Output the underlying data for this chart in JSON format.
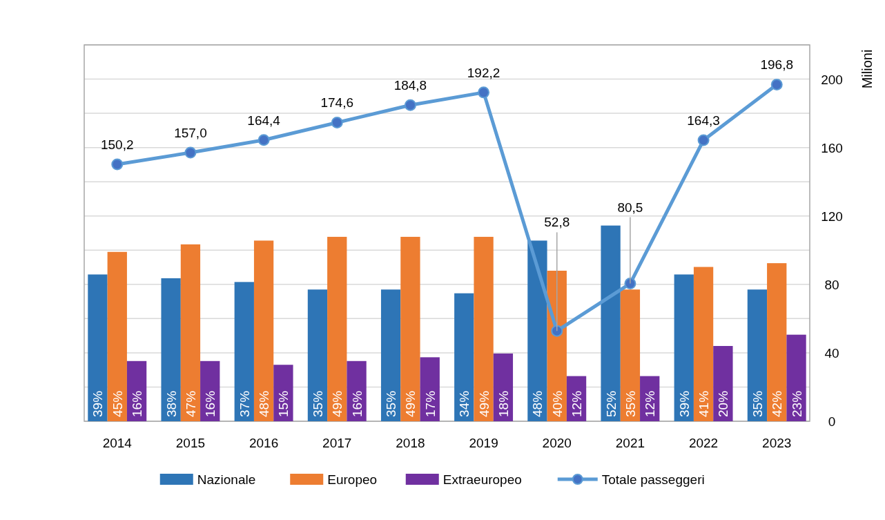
{
  "chart_data": {
    "type": "bar",
    "categories": [
      "2014",
      "2015",
      "2016",
      "2017",
      "2018",
      "2019",
      "2020",
      "2021",
      "2022",
      "2023"
    ],
    "series": [
      {
        "name": "Nazionale",
        "color": "#2e75b6",
        "axis": "y2",
        "values": [
          39,
          38,
          37,
          35,
          35,
          34,
          48,
          52,
          39,
          35
        ],
        "value_labels": [
          "39%",
          "38%",
          "37%",
          "35%",
          "35%",
          "34%",
          "48%",
          "52%",
          "39%",
          "35%"
        ]
      },
      {
        "name": "Europeo",
        "color": "#ed7d31",
        "axis": "y2",
        "values": [
          45,
          47,
          48,
          49,
          49,
          49,
          40,
          35,
          41,
          42
        ],
        "value_labels": [
          "45%",
          "47%",
          "48%",
          "49%",
          "49%",
          "49%",
          "40%",
          "35%",
          "41%",
          "42%"
        ]
      },
      {
        "name": "Extraeuropeo",
        "color": "#7030a0",
        "axis": "y2",
        "values": [
          16,
          16,
          15,
          16,
          17,
          18,
          12,
          12,
          20,
          23
        ],
        "value_labels": [
          "16%",
          "16%",
          "15%",
          "16%",
          "17%",
          "18%",
          "12%",
          "12%",
          "20%",
          "23%"
        ]
      },
      {
        "name": "Totale passeggeri",
        "type": "line",
        "color": "#5b9bd5",
        "marker": "circle",
        "values": [
          150.2,
          157.0,
          164.4,
          174.6,
          184.8,
          192.2,
          52.8,
          80.5,
          164.3,
          196.8
        ],
        "value_labels": [
          "150,2",
          "157,0",
          "164,4",
          "174,6",
          "184,8",
          "192,2",
          "52,8",
          "80,5",
          "164,3",
          "196,8"
        ]
      }
    ],
    "ylabel": "Milioni",
    "ylim": [
      0,
      220
    ],
    "yticks": [
      0,
      {
        "value": 20,
        "label": null
      },
      40,
      {
        "value": 60,
        "label": null
      },
      80,
      {
        "value": 100,
        "label": null
      },
      120,
      {
        "value": 140,
        "label": null
      },
      160,
      {
        "value": 180,
        "label": null
      },
      200,
      {
        "value": 220,
        "label": null
      }
    ],
    "y2lim": [
      0,
      100
    ],
    "grid": "y",
    "legend": "bottom"
  }
}
